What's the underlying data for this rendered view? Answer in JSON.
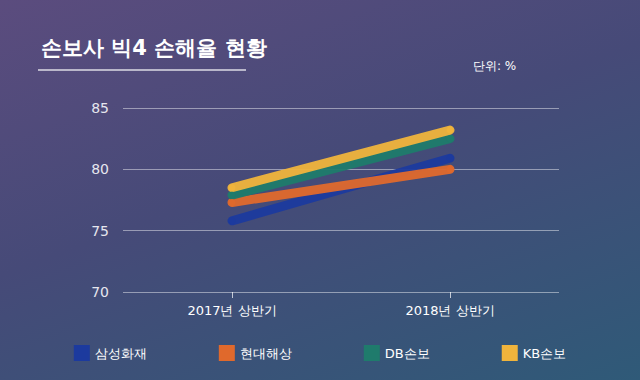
{
  "chart_data": {
    "type": "line",
    "title": "손보사 빅4 손해율 현황",
    "ylabel": "단위: %",
    "categories": [
      "2017년 상반기",
      "2018년 상반기"
    ],
    "series": [
      {
        "name": "삼성화재",
        "color": "#1c3a9e",
        "values": [
          75.8,
          80.9
        ]
      },
      {
        "name": "현대해상",
        "color": "#e0692c",
        "values": [
          77.3,
          80.0
        ]
      },
      {
        "name": "DB손보",
        "color": "#1f7b6c",
        "values": [
          77.9,
          82.5
        ]
      },
      {
        "name": "KB손보",
        "color": "#f0b43c",
        "values": [
          78.5,
          83.2
        ]
      }
    ],
    "ylim": [
      70,
      85
    ],
    "yticks": [
      70,
      75,
      80,
      85
    ],
    "grid": true,
    "legend": "bottom",
    "marker": "circle"
  }
}
